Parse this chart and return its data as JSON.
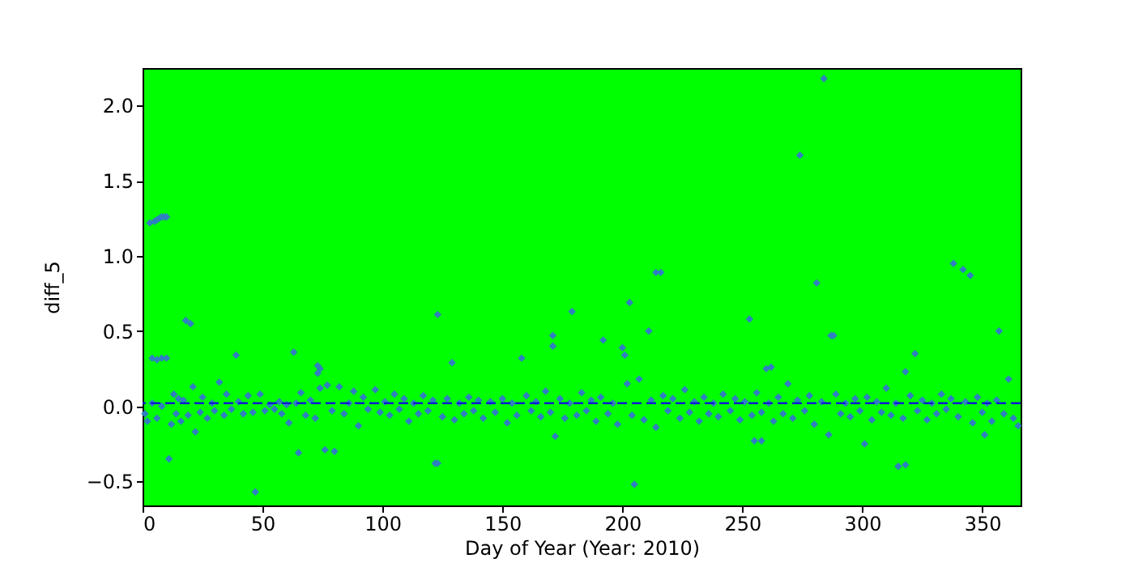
{
  "chart_data": {
    "type": "scatter",
    "xlabel": "Day of Year (Year: 2010)",
    "ylabel": "diff_5",
    "xlim": [
      0,
      366
    ],
    "xticks": [
      0,
      50,
      100,
      150,
      200,
      250,
      300,
      350
    ],
    "ylim": [
      -0.66,
      2.25
    ],
    "yticks": [
      {
        "value": -0.5,
        "label": "−0.5"
      },
      {
        "value": 0,
        "label": "0.0"
      },
      {
        "value": 0.5,
        "label": "0.5"
      },
      {
        "value": 1,
        "label": "1.0"
      },
      {
        "value": 1.5,
        "label": "1.5"
      },
      {
        "value": 2,
        "label": "2.0"
      }
    ],
    "marker": "diamond",
    "ref_lines": [
      {
        "axis": "y",
        "value": 0.02,
        "color": "#0a1fd0",
        "line_style": "dashed"
      }
    ],
    "series": [
      {
        "color": "#2f7fc1",
        "x": [
          1,
          2,
          4,
          6,
          8,
          12,
          13,
          14,
          15,
          16,
          17,
          19,
          21,
          22,
          24,
          25,
          27,
          29,
          30,
          32,
          34,
          35,
          37,
          40,
          42,
          44,
          46,
          49,
          51,
          53,
          55,
          57,
          58,
          60,
          61,
          64,
          66,
          68,
          70,
          72,
          74,
          77,
          79,
          82,
          84,
          86,
          88,
          90,
          92,
          94,
          97,
          99,
          101,
          103,
          105,
          107,
          109,
          111,
          113,
          115,
          117,
          119,
          121,
          125,
          127,
          130,
          132,
          134,
          136,
          138,
          140,
          142,
          145,
          147,
          150,
          152,
          154,
          156,
          160,
          162,
          164,
          166,
          168,
          170,
          174,
          176,
          178,
          181,
          183,
          185,
          187,
          189,
          191,
          194,
          196,
          198,
          202,
          204,
          207,
          209,
          212,
          214,
          217,
          219,
          221,
          224,
          226,
          228,
          230,
          232,
          234,
          236,
          238,
          240,
          242,
          245,
          247,
          249,
          251,
          254,
          256,
          258,
          261,
          263,
          265,
          267,
          269,
          271,
          273,
          276,
          278,
          280,
          283,
          286,
          289,
          291,
          293,
          295,
          297,
          299,
          302,
          304,
          306,
          308,
          310,
          312,
          314,
          317,
          320,
          323,
          325,
          327,
          329,
          331,
          333,
          335,
          337,
          340,
          343,
          346,
          348,
          350,
          352,
          354,
          356,
          359,
          361,
          363,
          365,
          3,
          5,
          6,
          7,
          8,
          9,
          10,
          4,
          6,
          8,
          10,
          18,
          20,
          11,
          39,
          47,
          63,
          65,
          73,
          74,
          73,
          76,
          80,
          122,
          123,
          123,
          129,
          158,
          171,
          171,
          179,
          172,
          192,
          200,
          201,
          203,
          205,
          211,
          214,
          216,
          253,
          255,
          258,
          260,
          262,
          274,
          281,
          284,
          287,
          288,
          301,
          315,
          318,
          318,
          322,
          338,
          342,
          345,
          351,
          357
        ],
        "values": [
          -0.05,
          -0.1,
          0.02,
          -0.08,
          0.0,
          -0.12,
          0.08,
          -0.05,
          0.05,
          -0.1,
          0.04,
          -0.06,
          0.13,
          -0.17,
          -0.04,
          0.06,
          -0.08,
          0.02,
          -0.03,
          0.16,
          -0.06,
          0.08,
          -0.02,
          0.03,
          -0.05,
          0.07,
          -0.04,
          0.08,
          -0.03,
          0.01,
          -0.02,
          0.03,
          -0.05,
          0.01,
          -0.11,
          0.02,
          0.09,
          -0.06,
          0.04,
          -0.08,
          0.12,
          0.14,
          -0.03,
          0.13,
          -0.05,
          0.02,
          0.1,
          -0.13,
          0.06,
          -0.02,
          0.11,
          -0.04,
          0.03,
          -0.06,
          0.08,
          -0.02,
          0.05,
          -0.1,
          0.02,
          -0.05,
          0.07,
          -0.03,
          0.04,
          -0.07,
          0.05,
          -0.09,
          0.02,
          -0.05,
          0.06,
          -0.03,
          0.04,
          -0.08,
          0.03,
          -0.04,
          0.05,
          -0.11,
          0.02,
          -0.06,
          0.07,
          -0.03,
          0.03,
          -0.07,
          0.1,
          -0.04,
          0.05,
          -0.08,
          0.02,
          -0.06,
          0.09,
          -0.03,
          0.04,
          -0.1,
          0.06,
          -0.05,
          0.02,
          -0.12,
          0.15,
          -0.06,
          0.18,
          -0.09,
          0.04,
          -0.14,
          0.07,
          -0.03,
          0.05,
          -0.08,
          0.11,
          -0.04,
          0.03,
          -0.1,
          0.06,
          -0.05,
          0.02,
          -0.07,
          0.08,
          -0.03,
          0.05,
          -0.09,
          0.03,
          -0.06,
          0.09,
          -0.04,
          0.02,
          -0.1,
          0.06,
          -0.05,
          0.15,
          -0.08,
          0.04,
          -0.03,
          0.07,
          -0.12,
          0.03,
          -0.19,
          0.08,
          -0.05,
          0.02,
          -0.07,
          0.05,
          -0.03,
          0.06,
          -0.09,
          0.03,
          -0.04,
          0.12,
          -0.06,
          0.02,
          -0.08,
          0.07,
          -0.03,
          0.04,
          -0.09,
          0.02,
          -0.05,
          0.08,
          -0.02,
          0.05,
          -0.07,
          0.03,
          -0.11,
          0.06,
          -0.04,
          0.02,
          -0.1,
          0.04,
          -0.05,
          0.18,
          -0.08,
          -0.13,
          1.22,
          1.23,
          1.24,
          1.25,
          1.26,
          1.26,
          1.26,
          0.32,
          0.31,
          0.32,
          0.32,
          0.57,
          0.55,
          -0.35,
          0.34,
          -0.57,
          0.36,
          -0.31,
          0.27,
          0.25,
          0.22,
          -0.29,
          -0.3,
          -0.38,
          -0.38,
          0.61,
          0.29,
          0.32,
          0.47,
          0.4,
          0.63,
          -0.2,
          0.44,
          0.39,
          0.34,
          0.69,
          -0.52,
          0.5,
          0.89,
          0.89,
          0.58,
          -0.23,
          -0.23,
          0.25,
          0.26,
          1.67,
          0.82,
          2.18,
          0.47,
          0.47,
          -0.25,
          -0.4,
          -0.39,
          0.23,
          0.35,
          0.95,
          0.91,
          0.87,
          -0.19,
          0.5
        ]
      }
    ]
  }
}
